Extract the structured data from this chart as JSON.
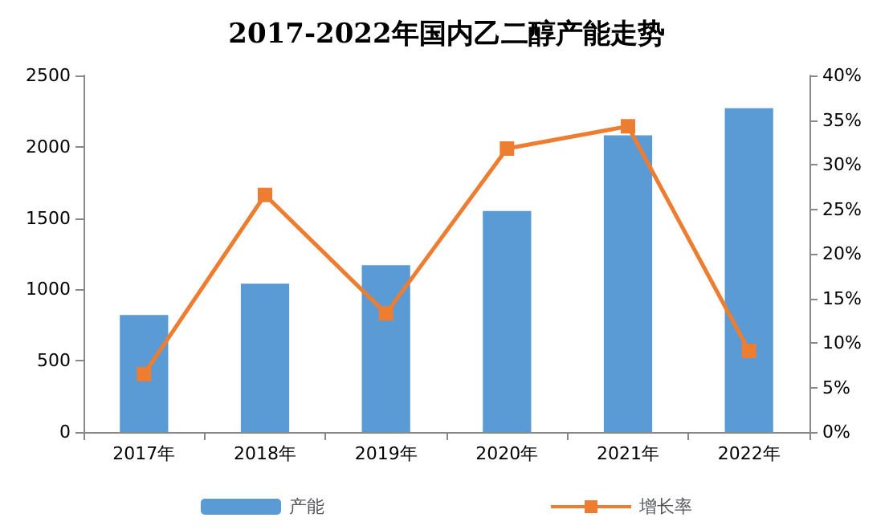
{
  "chart_data": {
    "type": "bar",
    "title": "2017-2022年国内乙二醇产能走势",
    "categories": [
      "2017年",
      "2018年",
      "2019年",
      "2020年",
      "2021年",
      "2022年"
    ],
    "series": [
      {
        "name": "产能",
        "color": "#5b9bd5",
        "values": [
          820,
          1040,
          1170,
          1550,
          2080,
          2270
        ]
      },
      {
        "name": "增长率",
        "type": "line",
        "axis": "y2",
        "color": "#ed7d31",
        "marker": "square",
        "values": [
          6.5,
          26.6,
          13.3,
          31.8,
          34.3,
          9.1
        ]
      }
    ],
    "ylim": [
      0,
      2500
    ],
    "yticks": [
      0,
      500,
      1000,
      1500,
      2000,
      2500
    ],
    "y2lim": [
      0,
      40
    ],
    "y2ticks": [
      {
        "value": 0,
        "label": "0%"
      },
      {
        "value": 5,
        "label": "5%"
      },
      {
        "value": 10,
        "label": "10%"
      },
      {
        "value": 15,
        "label": "15%"
      },
      {
        "value": 20,
        "label": "20%"
      },
      {
        "value": 25,
        "label": "25%"
      },
      {
        "value": 30,
        "label": "30%"
      },
      {
        "value": 35,
        "label": "35%"
      },
      {
        "value": 40,
        "label": "40%"
      }
    ],
    "grid": false,
    "legend": "bottom"
  }
}
